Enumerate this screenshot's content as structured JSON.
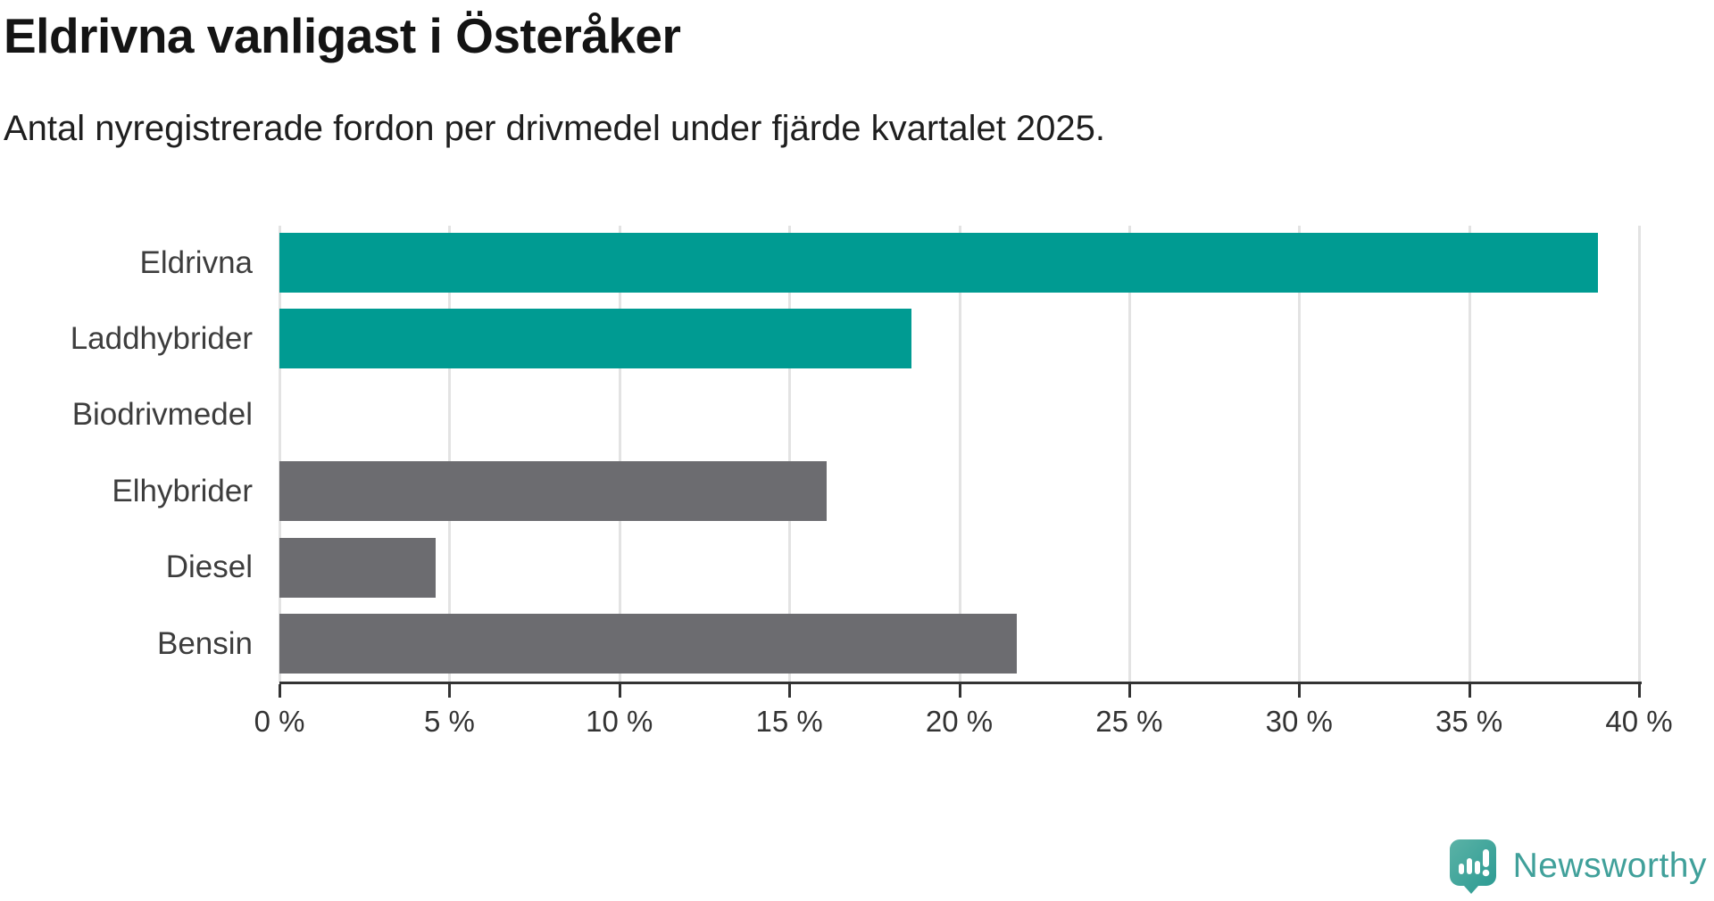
{
  "header": {
    "title": "Eldrivna vanligast i Österåker",
    "subtitle": "Antal nyregistrerade fordon per drivmedel under fjärde kvartalet 2025."
  },
  "chart_data": {
    "type": "bar",
    "orientation": "horizontal",
    "title": "Eldrivna vanligast i Österåker",
    "subtitle": "Antal nyregistrerade fordon per drivmedel under fjärde kvartalet 2025.",
    "categories": [
      "Eldrivna",
      "Laddhybrider",
      "Biodrivmedel",
      "Elhybrider",
      "Diesel",
      "Bensin"
    ],
    "values": [
      38.8,
      18.6,
      0,
      16.1,
      4.6,
      21.7
    ],
    "unit": "%",
    "bar_colors": [
      "#009b92",
      "#009b92",
      "#6c6c70",
      "#6c6c70",
      "#6c6c70",
      "#6c6c70"
    ],
    "highlight_color": "#009b92",
    "default_color": "#6c6c70",
    "xlabel": "",
    "ylabel": "",
    "xlim": [
      0,
      40
    ],
    "x_tick_values": [
      0,
      5,
      10,
      15,
      20,
      25,
      30,
      35,
      40
    ],
    "x_tick_labels": [
      "0 %",
      "5 %",
      "10 %",
      "15 %",
      "20 %",
      "25 %",
      "30 %",
      "35 %",
      "40 %"
    ],
    "grid": "vertical",
    "gridline_color": "#e3e3e3",
    "axis_color": "#333333",
    "legend": "none"
  },
  "branding": {
    "logo_text": "Newsworthy",
    "logo_text_color": "#40a09a",
    "icon_name": "newsworthy-speech-bubble-chart-icon",
    "icon_color_light": "#5bb2a6",
    "icon_color_dark": "#2a9a92"
  }
}
